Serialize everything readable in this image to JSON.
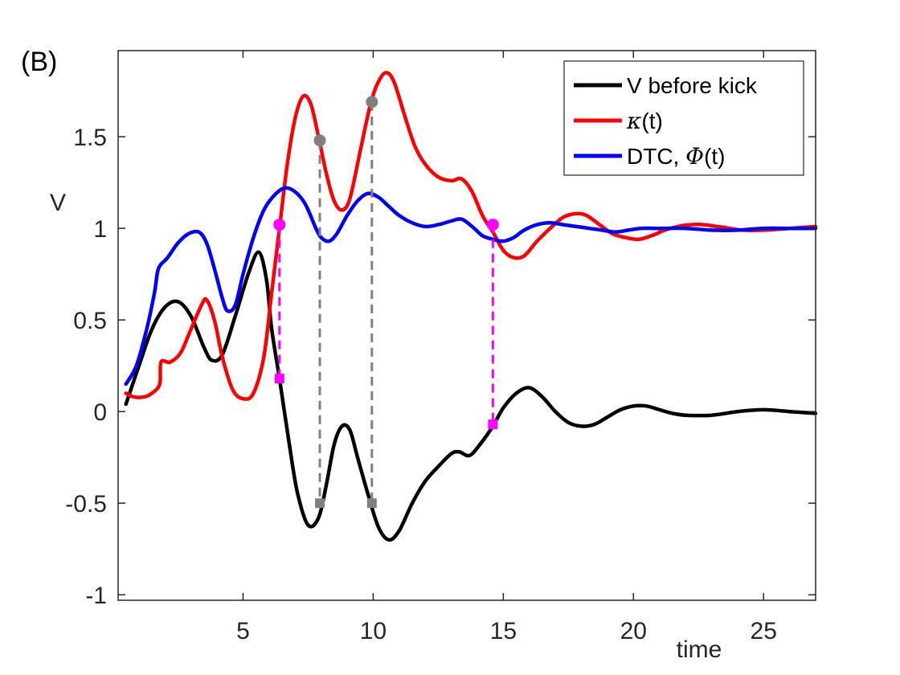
{
  "panel_label": "(B)",
  "chart_data": {
    "type": "line",
    "xlabel": "time",
    "ylabel": "V",
    "xlim": [
      0.2,
      27
    ],
    "ylim": [
      -1.03,
      1.97
    ],
    "xticks": [
      5,
      10,
      15,
      20,
      25
    ],
    "yticks": [
      -1,
      -0.5,
      0,
      0.5,
      1,
      1.5
    ],
    "ytick_labels": [
      "-1",
      "-0.5",
      "0",
      "0.5",
      "1",
      "1.5"
    ],
    "grid": false,
    "legend_position": "top-right",
    "legend": [
      {
        "key": "v",
        "prefix": "V before kick",
        "symbol": "",
        "suffix": "",
        "color": "#000000"
      },
      {
        "key": "kappa",
        "prefix": "",
        "symbol": "κ",
        "suffix": "(t)",
        "color": "#ff0000"
      },
      {
        "key": "phi",
        "prefix": "DTC, ",
        "symbol": "Φ",
        "suffix": "(t)",
        "color": "#0000ff"
      }
    ],
    "series": [
      {
        "key": "v",
        "color": "#000000",
        "points": [
          [
            0.5,
            0.04
          ],
          [
            1.0,
            0.25
          ],
          [
            1.5,
            0.45
          ],
          [
            2.0,
            0.57
          ],
          [
            2.5,
            0.6
          ],
          [
            3.0,
            0.52
          ],
          [
            3.5,
            0.35
          ],
          [
            3.8,
            0.28
          ],
          [
            4.2,
            0.31
          ],
          [
            4.7,
            0.52
          ],
          [
            5.2,
            0.75
          ],
          [
            5.6,
            0.87
          ],
          [
            5.9,
            0.72
          ],
          [
            6.1,
            0.45
          ],
          [
            6.4,
            0.18
          ],
          [
            6.8,
            -0.2
          ],
          [
            7.1,
            -0.45
          ],
          [
            7.5,
            -0.62
          ],
          [
            7.9,
            -0.58
          ],
          [
            8.2,
            -0.4
          ],
          [
            8.5,
            -0.18
          ],
          [
            8.8,
            -0.08
          ],
          [
            9.1,
            -0.1
          ],
          [
            9.4,
            -0.25
          ],
          [
            9.8,
            -0.45
          ],
          [
            10.2,
            -0.63
          ],
          [
            10.6,
            -0.7
          ],
          [
            11.0,
            -0.65
          ],
          [
            11.5,
            -0.5
          ],
          [
            12.0,
            -0.38
          ],
          [
            12.5,
            -0.3
          ],
          [
            13.0,
            -0.23
          ],
          [
            13.3,
            -0.22
          ],
          [
            13.7,
            -0.24
          ],
          [
            14.1,
            -0.18
          ],
          [
            14.6,
            -0.08
          ],
          [
            15.0,
            0.02
          ],
          [
            15.5,
            0.1
          ],
          [
            16.0,
            0.13
          ],
          [
            16.5,
            0.08
          ],
          [
            17.0,
            0.0
          ],
          [
            17.5,
            -0.06
          ],
          [
            18.0,
            -0.08
          ],
          [
            18.5,
            -0.07
          ],
          [
            19.0,
            -0.03
          ],
          [
            19.5,
            0.01
          ],
          [
            20.0,
            0.03
          ],
          [
            20.5,
            0.03
          ],
          [
            21.0,
            0.01
          ],
          [
            21.5,
            -0.01
          ],
          [
            22.0,
            -0.02
          ],
          [
            23.0,
            -0.02
          ],
          [
            24.0,
            0.0
          ],
          [
            25.0,
            0.01
          ],
          [
            26.0,
            0.0
          ],
          [
            27.0,
            -0.01
          ]
        ]
      },
      {
        "key": "kappa",
        "color": "#ff0000",
        "points": [
          [
            0.5,
            0.1
          ],
          [
            0.8,
            0.08
          ],
          [
            1.2,
            0.08
          ],
          [
            1.5,
            0.1
          ],
          [
            1.8,
            0.15
          ],
          [
            1.85,
            0.27
          ],
          [
            2.2,
            0.27
          ],
          [
            2.6,
            0.32
          ],
          [
            3.0,
            0.45
          ],
          [
            3.4,
            0.58
          ],
          [
            3.6,
            0.61
          ],
          [
            3.9,
            0.5
          ],
          [
            4.2,
            0.3
          ],
          [
            4.6,
            0.12
          ],
          [
            5.0,
            0.07
          ],
          [
            5.4,
            0.1
          ],
          [
            5.8,
            0.3
          ],
          [
            6.1,
            0.65
          ],
          [
            6.4,
            1.0
          ],
          [
            6.7,
            1.35
          ],
          [
            7.0,
            1.6
          ],
          [
            7.3,
            1.72
          ],
          [
            7.6,
            1.68
          ],
          [
            7.9,
            1.5
          ],
          [
            8.2,
            1.3
          ],
          [
            8.5,
            1.15
          ],
          [
            8.8,
            1.1
          ],
          [
            9.1,
            1.16
          ],
          [
            9.5,
            1.42
          ],
          [
            9.9,
            1.68
          ],
          [
            10.2,
            1.8
          ],
          [
            10.5,
            1.85
          ],
          [
            10.8,
            1.8
          ],
          [
            11.2,
            1.62
          ],
          [
            11.6,
            1.45
          ],
          [
            12.0,
            1.35
          ],
          [
            12.5,
            1.28
          ],
          [
            13.0,
            1.26
          ],
          [
            13.4,
            1.27
          ],
          [
            13.8,
            1.2
          ],
          [
            14.2,
            1.07
          ],
          [
            14.6,
            0.98
          ],
          [
            15.0,
            0.88
          ],
          [
            15.4,
            0.84
          ],
          [
            15.8,
            0.85
          ],
          [
            16.3,
            0.93
          ],
          [
            16.8,
            1.0
          ],
          [
            17.3,
            1.06
          ],
          [
            17.8,
            1.08
          ],
          [
            18.2,
            1.07
          ],
          [
            18.7,
            1.02
          ],
          [
            19.2,
            0.97
          ],
          [
            19.7,
            0.95
          ],
          [
            20.2,
            0.94
          ],
          [
            20.7,
            0.96
          ],
          [
            21.2,
            0.99
          ],
          [
            21.7,
            1.01
          ],
          [
            22.2,
            1.02
          ],
          [
            22.7,
            1.02
          ],
          [
            23.2,
            1.01
          ],
          [
            23.7,
            1.0
          ],
          [
            24.2,
            0.99
          ],
          [
            25.0,
            0.99
          ],
          [
            26.0,
            1.0
          ],
          [
            27.0,
            1.01
          ]
        ]
      },
      {
        "key": "phi",
        "color": "#0000ff",
        "points": [
          [
            0.5,
            0.15
          ],
          [
            0.9,
            0.25
          ],
          [
            1.3,
            0.45
          ],
          [
            1.6,
            0.65
          ],
          [
            1.75,
            0.78
          ],
          [
            2.1,
            0.84
          ],
          [
            2.5,
            0.92
          ],
          [
            2.9,
            0.97
          ],
          [
            3.3,
            0.98
          ],
          [
            3.6,
            0.92
          ],
          [
            3.9,
            0.78
          ],
          [
            4.2,
            0.62
          ],
          [
            4.4,
            0.55
          ],
          [
            4.7,
            0.58
          ],
          [
            5.0,
            0.75
          ],
          [
            5.4,
            0.95
          ],
          [
            5.8,
            1.1
          ],
          [
            6.2,
            1.18
          ],
          [
            6.6,
            1.22
          ],
          [
            7.0,
            1.2
          ],
          [
            7.4,
            1.13
          ],
          [
            7.8,
            1.0
          ],
          [
            8.0,
            0.95
          ],
          [
            8.3,
            0.93
          ],
          [
            8.6,
            0.97
          ],
          [
            9.0,
            1.07
          ],
          [
            9.4,
            1.15
          ],
          [
            9.8,
            1.19
          ],
          [
            10.2,
            1.17
          ],
          [
            10.6,
            1.12
          ],
          [
            11.0,
            1.07
          ],
          [
            11.5,
            1.03
          ],
          [
            12.0,
            1.01
          ],
          [
            12.5,
            1.02
          ],
          [
            13.0,
            1.04
          ],
          [
            13.4,
            1.05
          ],
          [
            13.8,
            1.01
          ],
          [
            14.2,
            0.96
          ],
          [
            14.6,
            0.94
          ],
          [
            15.0,
            0.93
          ],
          [
            15.4,
            0.95
          ],
          [
            15.8,
            0.99
          ],
          [
            16.3,
            1.02
          ],
          [
            16.8,
            1.03
          ],
          [
            17.3,
            1.02
          ],
          [
            17.8,
            1.01
          ],
          [
            18.3,
            1.0
          ],
          [
            18.8,
            0.99
          ],
          [
            19.3,
            0.98
          ],
          [
            19.8,
            0.99
          ],
          [
            20.3,
            1.0
          ],
          [
            21.0,
            1.0
          ],
          [
            22.0,
            1.0
          ],
          [
            23.0,
            0.99
          ],
          [
            24.0,
            0.99
          ],
          [
            25.0,
            1.0
          ],
          [
            26.0,
            1.0
          ],
          [
            27.0,
            1.0
          ]
        ]
      }
    ],
    "markers": [
      {
        "x": 6.4,
        "y_top": 1.02,
        "y_bottom": 0.18,
        "color": "#ff00ff"
      },
      {
        "x": 7.95,
        "y_top": 1.48,
        "y_bottom": -0.5,
        "color": "#808080"
      },
      {
        "x": 9.95,
        "y_top": 1.69,
        "y_bottom": -0.5,
        "color": "#808080"
      },
      {
        "x": 14.6,
        "y_top": 1.02,
        "y_bottom": -0.07,
        "color": "#ff00ff"
      }
    ]
  }
}
